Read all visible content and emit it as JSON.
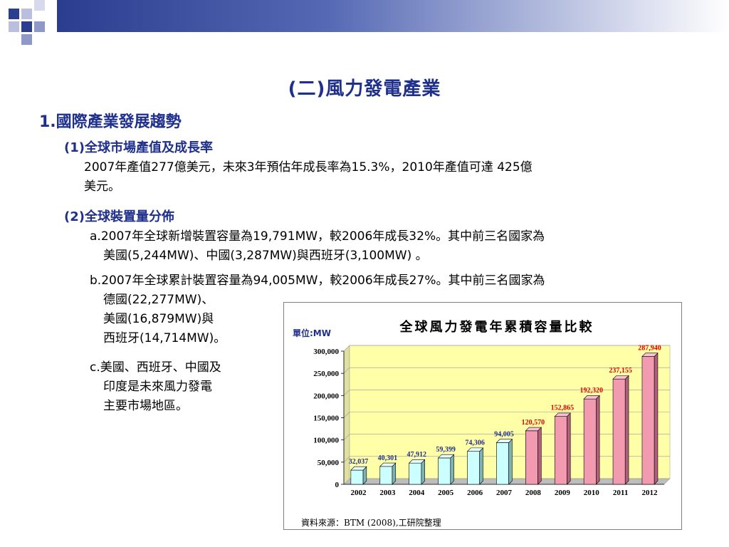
{
  "title": "(二)風力發電產業",
  "section1": {
    "heading": "1.國際產業發展趨勢",
    "sub1": {
      "heading": "(1)全球市場產值及成長率",
      "line1": "2007年產值277億美元，未來3年預估年成長率為15.3%，2010年產值可達 425億",
      "line2": "美元。"
    },
    "sub2": {
      "heading": "(2)全球裝置量分佈",
      "a_line1": "a.2007年全球新增裝置容量為19,791MW，較2006年成長32%。其中前三名國家為",
      "a_line2": "美國(5,244MW)、中國(3,287MW)與西班牙(3,100MW) 。",
      "b_line1": "b.2007年全球累計裝置容量為94,005MW，較2006年成長27%。其中前三名國家為",
      "b_line2": "德國(22,277MW)、",
      "b_line3": "美國(16,879MW)與",
      "b_line4": "西班牙(14,714MW)。",
      "c_line1": "c.美國、西班牙、中國及",
      "c_line2": "印度是未來風力發電",
      "c_line3": "主要市場地區。"
    }
  },
  "colors": {
    "accent": "#1f2f8c",
    "bar_actual": "#ccffff",
    "bar_forecast": "#f29bb0",
    "plot_bg": "#ffffa8",
    "forecast_label": "#e00000",
    "actual_label": "#1f2f8c"
  },
  "chart_data": {
    "type": "bar",
    "title": "全球風力發電年累積容量比較",
    "unit_label": "單位:MW",
    "source": "資料來源：BTM (2008),工研院整理",
    "categories": [
      "2002",
      "2003",
      "2004",
      "2005",
      "2006",
      "2007",
      "2008",
      "2009",
      "2010",
      "2011",
      "2012"
    ],
    "values": [
      32037,
      40301,
      47912,
      59399,
      74306,
      94005,
      120570,
      152865,
      192320,
      237155,
      287940
    ],
    "value_labels": [
      "32,037",
      "40,301",
      "47,912",
      "59,399",
      "74,306",
      "94,005",
      "120,570",
      "152,865",
      "192,320",
      "237,155",
      "287,940"
    ],
    "forecast_from_index": 6,
    "ylim": [
      0,
      300000
    ],
    "yticks": [
      0,
      50000,
      100000,
      150000,
      200000,
      250000,
      300000
    ],
    "ytick_labels": [
      "0",
      "50,000",
      "100,000",
      "150,000",
      "200,000",
      "250,000",
      "300,000"
    ],
    "grid": true,
    "legend": "none"
  }
}
